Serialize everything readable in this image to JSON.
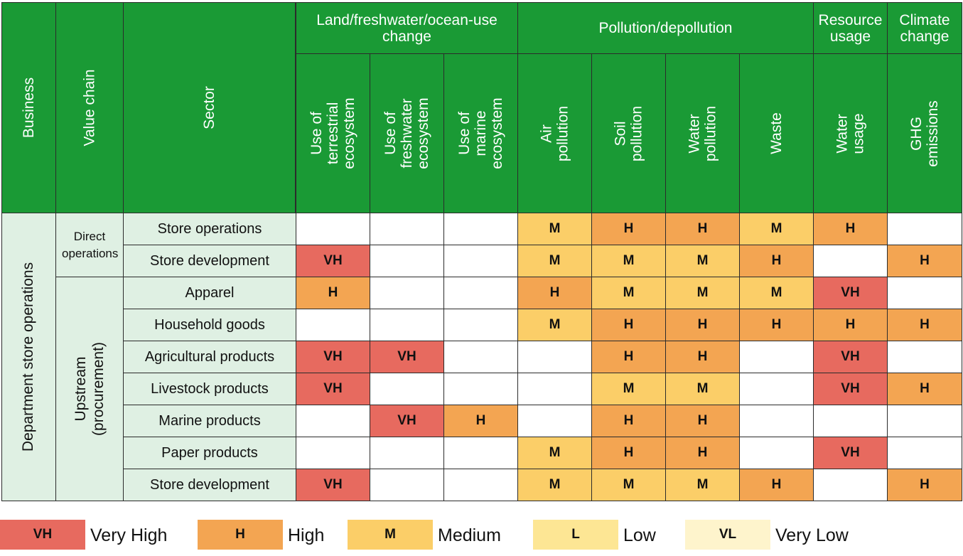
{
  "table": {
    "header": {
      "business": "Business",
      "value_chain": "Value chain",
      "sector": "Sector",
      "groups": [
        {
          "label": "Land/freshwater/ocean-use change",
          "span": 3
        },
        {
          "label": "Pollution/depollution",
          "span": 4
        },
        {
          "label": "Resource usage",
          "span": 1
        },
        {
          "label": "Climate change",
          "span": 1
        }
      ],
      "columns": [
        "Use of terrestrial ecosystem",
        "Use of freshwater ecosystem",
        "Use of marine ecosystem",
        "Air pollution",
        "Soil pollution",
        "Water pollution",
        "Waste",
        "Water usage",
        "GHG emissions"
      ]
    },
    "business": "Department store operations",
    "value_chains": [
      {
        "label": "Direct operations",
        "rows": 2
      },
      {
        "label": "Upstream (procurement)",
        "rows": 7
      }
    ],
    "rows": [
      {
        "sector": "Store operations",
        "ratings": [
          "",
          "",
          "",
          "M",
          "H",
          "H",
          "M",
          "H",
          ""
        ]
      },
      {
        "sector": "Store development",
        "ratings": [
          "VH",
          "",
          "",
          "M",
          "M",
          "M",
          "H",
          "",
          "H"
        ]
      },
      {
        "sector": "Apparel",
        "ratings": [
          "H",
          "",
          "",
          "H",
          "M",
          "M",
          "M",
          "VH",
          ""
        ]
      },
      {
        "sector": "Household goods",
        "ratings": [
          "",
          "",
          "",
          "M",
          "H",
          "H",
          "H",
          "H",
          "H"
        ]
      },
      {
        "sector": "Agricultural products",
        "ratings": [
          "VH",
          "VH",
          "",
          "",
          "H",
          "H",
          "",
          "VH",
          ""
        ]
      },
      {
        "sector": "Livestock products",
        "ratings": [
          "VH",
          "",
          "",
          "",
          "M",
          "M",
          "",
          "VH",
          "H"
        ]
      },
      {
        "sector": "Marine products",
        "ratings": [
          "",
          "VH",
          "H",
          "",
          "H",
          "H",
          "",
          "",
          ""
        ]
      },
      {
        "sector": "Paper products",
        "ratings": [
          "",
          "",
          "",
          "M",
          "H",
          "H",
          "",
          "VH",
          ""
        ]
      },
      {
        "sector": "Store development",
        "ratings": [
          "VH",
          "",
          "",
          "M",
          "M",
          "M",
          "H",
          "",
          "H"
        ]
      }
    ]
  },
  "legend": [
    {
      "code": "VH",
      "label": "Very High",
      "color": "#e76a5f"
    },
    {
      "code": "H",
      "label": "High",
      "color": "#f3a552"
    },
    {
      "code": "M",
      "label": "Medium",
      "color": "#fbce68"
    },
    {
      "code": "L",
      "label": "Low",
      "color": "#fde694"
    },
    {
      "code": "VL",
      "label": "Very Low",
      "color": "#fef4cc"
    }
  ],
  "colors": {
    "header_green": "#1a9a35",
    "label_bg": "#dff0e3",
    "empty_cell": "#ffffff"
  }
}
